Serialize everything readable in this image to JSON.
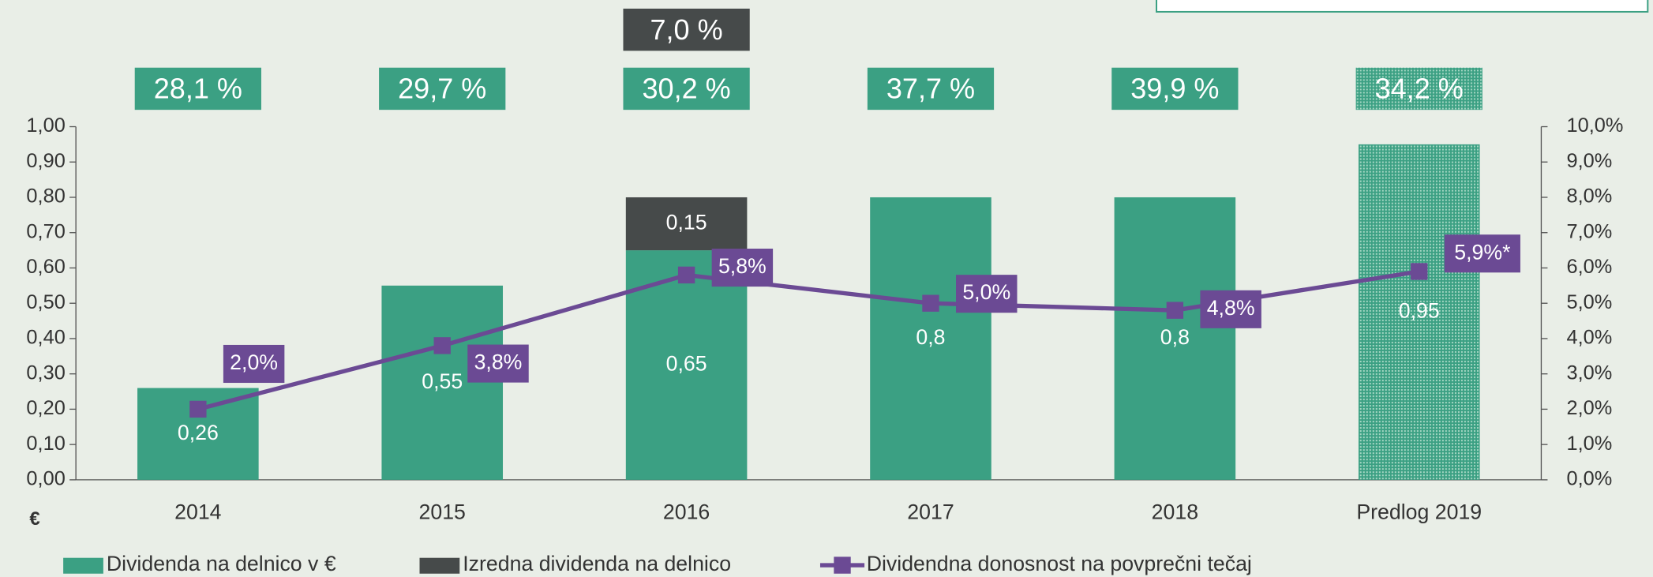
{
  "chart_data": {
    "type": "bar",
    "stacked": true,
    "categories": [
      "2014",
      "2015",
      "2016",
      "2017",
      "2018",
      "Predlog 2019"
    ],
    "y_label": "€",
    "series": [
      {
        "name": "Dividenda na delnico v €",
        "color": "#3ba083",
        "values": [
          0.26,
          0.55,
          0.65,
          0.8,
          0.8,
          0.95
        ],
        "value_labels": [
          "0,26",
          "0,55",
          "0,65",
          "0,8",
          "0,8",
          "0,95"
        ]
      },
      {
        "name": "Izredna dividenda na delnico",
        "color": "#464a4a",
        "values": [
          null,
          null,
          0.15,
          null,
          null,
          null
        ],
        "value_labels": [
          null,
          null,
          "0,15",
          null,
          null,
          null
        ]
      },
      {
        "name": "Dividendna donosnost na povprečni tečaj",
        "type": "line",
        "axis": "y2",
        "color": "#6b4a94",
        "values": [
          2.0,
          3.8,
          5.8,
          5.0,
          4.8,
          5.9
        ],
        "value_labels": [
          "2,0%",
          "3,8%",
          "5,8%",
          "5,0%",
          "4,8%",
          "5,9%*"
        ]
      }
    ],
    "annotations": [
      "28,1 %",
      "29,7 %",
      "30,2 %",
      "37,7 %",
      "39,9 %",
      "34,2 %"
    ],
    "extra_annotation": "7,0 %",
    "ylim": [
      0,
      1
    ],
    "yticks": [
      {
        "value": 0,
        "label": "0,00"
      },
      {
        "value": 0.1,
        "label": "0,10"
      },
      {
        "value": 0.2,
        "label": "0,20"
      },
      {
        "value": 0.3,
        "label": "0,30"
      },
      {
        "value": 0.4,
        "label": "0,40"
      },
      {
        "value": 0.5,
        "label": "0,50"
      },
      {
        "value": 0.6,
        "label": "0,60"
      },
      {
        "value": 0.7,
        "label": "0,70"
      },
      {
        "value": 0.8,
        "label": "0,80"
      },
      {
        "value": 0.9,
        "label": "0,90"
      },
      {
        "value": 1,
        "label": "1,00"
      }
    ],
    "y2lim": [
      0,
      10
    ],
    "y2ticks": [
      {
        "value": 0,
        "label": "0,0%"
      },
      {
        "value": 1,
        "label": "1,0%"
      },
      {
        "value": 2,
        "label": "2,0%"
      },
      {
        "value": 3,
        "label": "3,0%"
      },
      {
        "value": 4,
        "label": "4,0%"
      },
      {
        "value": 5,
        "label": "5,0%"
      },
      {
        "value": 6,
        "label": "6,0%"
      },
      {
        "value": 7,
        "label": "7,0%"
      },
      {
        "value": 8,
        "label": "8,0%"
      },
      {
        "value": 9,
        "label": "9,0%"
      },
      {
        "value": 10,
        "label": "10,0%"
      }
    ]
  }
}
